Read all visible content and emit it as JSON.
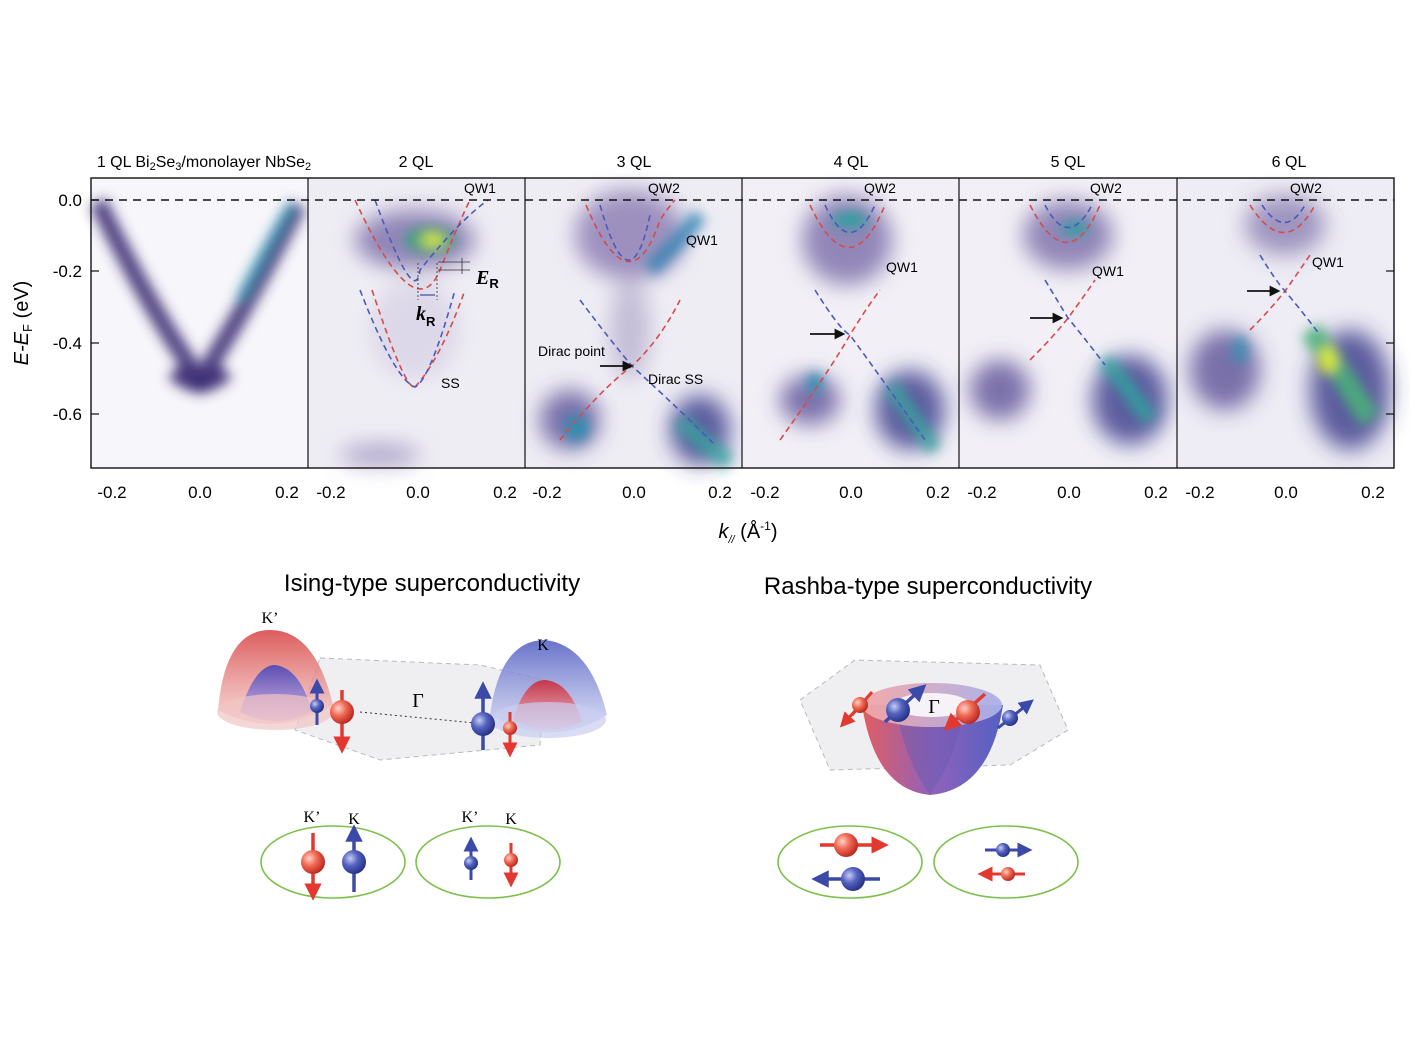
{
  "arpes": {
    "y_axis_label": "E-E",
    "y_axis_sub": "F",
    "y_axis_unit": " (eV)",
    "x_axis_label": "k",
    "x_axis_sub": "//",
    "x_axis_unit": " (Å",
    "x_axis_unit_sup": "-1",
    "x_axis_unit_close": ")",
    "y_ticks": [
      "0.0",
      "-0.2",
      "-0.4",
      "-0.6"
    ],
    "x_ticks": [
      "-0.2",
      "0.0",
      "0.2"
    ],
    "panels": [
      {
        "title_a": "1 QL Bi",
        "title_sub1": "2",
        "title_b": "Se",
        "title_sub2": "3",
        "title_c": "/monolayer NbSe",
        "title_sub3": "2",
        "labels": []
      },
      {
        "title": "2 QL",
        "labels": [
          "QW1",
          "E",
          "R",
          "k",
          "R",
          "SS"
        ]
      },
      {
        "title": "3 QL",
        "labels": [
          "QW2",
          "QW1",
          "Dirac point",
          "Dirac SS"
        ]
      },
      {
        "title": "4 QL",
        "labels": [
          "QW2",
          "QW1"
        ]
      },
      {
        "title": "5 QL",
        "labels": [
          "QW2",
          "QW1"
        ]
      },
      {
        "title": "6 QL",
        "labels": [
          "QW2",
          "QW1"
        ]
      }
    ]
  },
  "ising": {
    "title": "Ising-type superconductivity",
    "k_prime": "K’",
    "k": "K",
    "gamma": "Γ",
    "pair1_labels": [
      "K’",
      "K"
    ],
    "pair2_labels": [
      "K’",
      "K"
    ]
  },
  "rashba": {
    "title": "Rashba-type superconductivity",
    "gamma": "Γ"
  },
  "colors": {
    "spin_up_blue": "#3b4aa8",
    "spin_down_red": "#e2382f",
    "pair_ellipse": "#7cc04a",
    "dash_red": "#e0453a",
    "dash_blue": "#4a5ab8"
  }
}
